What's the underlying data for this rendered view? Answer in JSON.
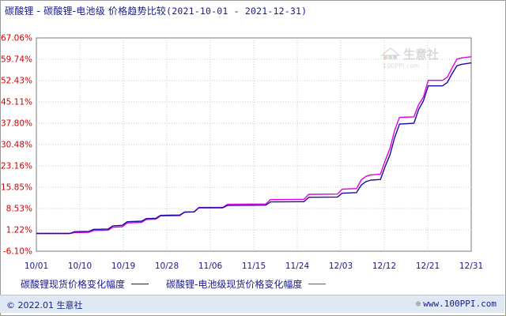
{
  "title": {
    "text": "碳酸锂 - 碳酸锂-电池级 价格趋势比较",
    "date_range": "(2021-10-01 - 2021-12-31)"
  },
  "watermark": {
    "text": "生意社",
    "sub": "100PPI.com"
  },
  "footer": {
    "copyright": "© 2022.01 生意社",
    "url": "www.100PPI.com"
  },
  "colors": {
    "series_1": "#1a0aa6",
    "series_2": "#e000e0",
    "y_tick": "#cc0000",
    "x_tick": "#1a1a8c",
    "grid": "#c8c8c8"
  },
  "chart_data": {
    "type": "line",
    "xlabel": "",
    "ylabel": "",
    "y_ticks": [
      "67.06%",
      "59.74%",
      "52.43%",
      "45.11%",
      "37.80%",
      "30.48%",
      "23.16%",
      "15.85%",
      "8.53%",
      "1.22%",
      "-6.10%"
    ],
    "ylim": [
      -6.1,
      67.06
    ],
    "x_ticks": [
      "10/01",
      "10/10",
      "10/19",
      "10/28",
      "11/06",
      "11/15",
      "11/24",
      "12/03",
      "12/12",
      "12/21",
      "12/31"
    ],
    "xlim": [
      "2021-10-01",
      "2021-12-31"
    ],
    "grid": true,
    "legend_position": "bottom",
    "series": [
      {
        "name": "碳酸锂现货价格变化幅度",
        "color": "#1a0aa6",
        "points": [
          [
            "2021-10-01",
            0.0
          ],
          [
            "2021-10-08",
            0.0
          ],
          [
            "2021-10-09",
            0.6
          ],
          [
            "2021-10-12",
            0.7
          ],
          [
            "2021-10-13",
            1.4
          ],
          [
            "2021-10-16",
            1.5
          ],
          [
            "2021-10-17",
            2.6
          ],
          [
            "2021-10-19",
            2.8
          ],
          [
            "2021-10-20",
            4.0
          ],
          [
            "2021-10-23",
            4.2
          ],
          [
            "2021-10-24",
            5.1
          ],
          [
            "2021-10-26",
            5.2
          ],
          [
            "2021-10-27",
            6.2
          ],
          [
            "2021-10-31",
            6.3
          ],
          [
            "2021-11-01",
            7.3
          ],
          [
            "2021-11-03",
            7.4
          ],
          [
            "2021-11-04",
            8.8
          ],
          [
            "2021-11-09",
            8.8
          ],
          [
            "2021-11-10",
            9.6
          ],
          [
            "2021-11-18",
            9.7
          ],
          [
            "2021-11-19",
            10.8
          ],
          [
            "2021-11-26",
            10.9
          ],
          [
            "2021-11-27",
            12.4
          ],
          [
            "2021-12-03",
            12.5
          ],
          [
            "2021-12-04",
            13.8
          ],
          [
            "2021-12-07",
            14.0
          ],
          [
            "2021-12-08",
            16.6
          ],
          [
            "2021-12-09",
            17.8
          ],
          [
            "2021-12-10",
            18.3
          ],
          [
            "2021-12-12",
            18.5
          ],
          [
            "2021-12-13",
            23.0
          ],
          [
            "2021-12-14",
            27.0
          ],
          [
            "2021-12-15",
            33.0
          ],
          [
            "2021-12-16",
            37.5
          ],
          [
            "2021-12-19",
            37.8
          ],
          [
            "2021-12-20",
            42.5
          ],
          [
            "2021-12-21",
            45.5
          ],
          [
            "2021-12-22",
            50.6
          ],
          [
            "2021-12-25",
            50.6
          ],
          [
            "2021-12-26",
            51.8
          ],
          [
            "2021-12-27",
            54.8
          ],
          [
            "2021-12-28",
            57.5
          ],
          [
            "2021-12-29",
            58.0
          ],
          [
            "2021-12-31",
            58.5
          ]
        ]
      },
      {
        "name": "碳酸锂-电池级现货价格变化幅度",
        "color": "#e000e0",
        "points": [
          [
            "2021-10-01",
            0.0
          ],
          [
            "2021-10-08",
            0.0
          ],
          [
            "2021-10-09",
            0.3
          ],
          [
            "2021-10-12",
            0.4
          ],
          [
            "2021-10-13",
            1.0
          ],
          [
            "2021-10-16",
            1.1
          ],
          [
            "2021-10-17",
            2.1
          ],
          [
            "2021-10-19",
            2.3
          ],
          [
            "2021-10-20",
            3.6
          ],
          [
            "2021-10-23",
            3.8
          ],
          [
            "2021-10-24",
            4.8
          ],
          [
            "2021-10-26",
            4.9
          ],
          [
            "2021-10-27",
            6.0
          ],
          [
            "2021-10-31",
            6.1
          ],
          [
            "2021-11-01",
            7.3
          ],
          [
            "2021-11-03",
            7.4
          ],
          [
            "2021-11-04",
            8.9
          ],
          [
            "2021-11-09",
            8.9
          ],
          [
            "2021-11-10",
            10.0
          ],
          [
            "2021-11-18",
            10.1
          ],
          [
            "2021-11-19",
            11.6
          ],
          [
            "2021-11-26",
            11.7
          ],
          [
            "2021-11-27",
            13.4
          ],
          [
            "2021-12-03",
            13.5
          ],
          [
            "2021-12-04",
            15.2
          ],
          [
            "2021-12-07",
            15.4
          ],
          [
            "2021-12-08",
            18.4
          ],
          [
            "2021-12-09",
            19.6
          ],
          [
            "2021-12-10",
            20.1
          ],
          [
            "2021-12-12",
            20.3
          ],
          [
            "2021-12-13",
            25.0
          ],
          [
            "2021-12-14",
            29.2
          ],
          [
            "2021-12-15",
            35.5
          ],
          [
            "2021-12-16",
            39.8
          ],
          [
            "2021-12-19",
            40.0
          ],
          [
            "2021-12-20",
            44.2
          ],
          [
            "2021-12-21",
            46.8
          ],
          [
            "2021-12-22",
            52.5
          ],
          [
            "2021-12-25",
            52.5
          ],
          [
            "2021-12-26",
            53.6
          ],
          [
            "2021-12-27",
            56.8
          ],
          [
            "2021-12-28",
            59.8
          ],
          [
            "2021-12-29",
            60.2
          ],
          [
            "2021-12-31",
            60.6
          ]
        ]
      }
    ]
  }
}
